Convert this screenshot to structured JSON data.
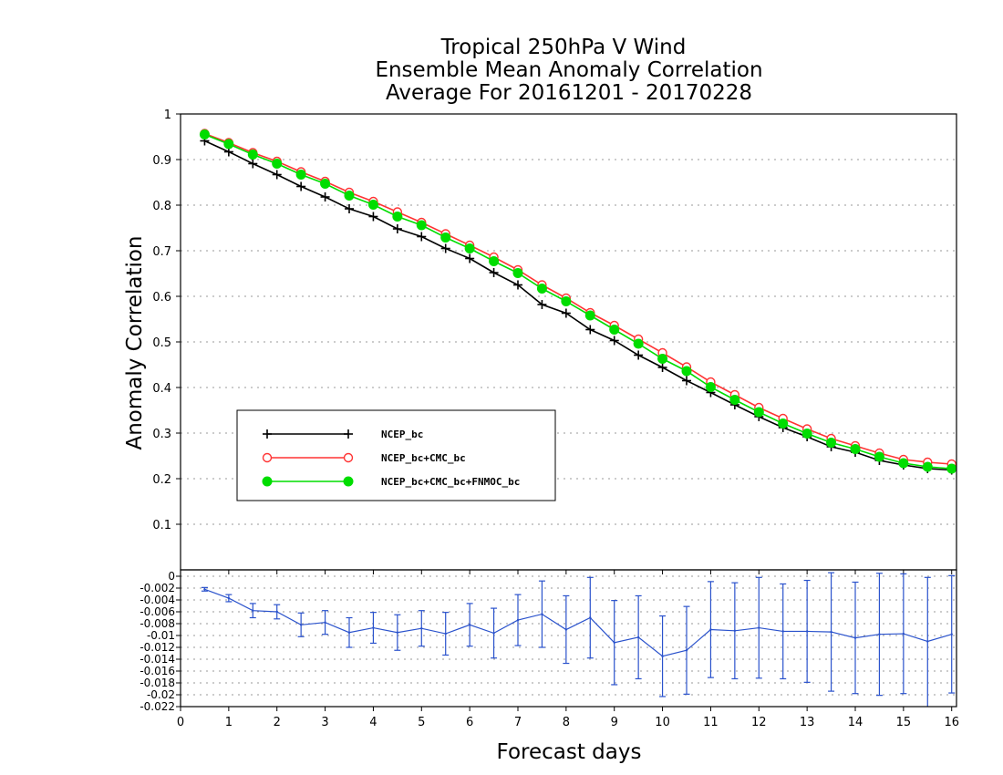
{
  "chart_data": [
    {
      "type": "line",
      "title_lines": [
        "Tropical 250hPa V Wind",
        "Ensemble Mean Anomaly Correlation",
        "Average For 20161201 - 20170228"
      ],
      "ylabel": "Anomaly Correlation",
      "xlim": [
        0,
        16.1
      ],
      "ylim": [
        0,
        1
      ],
      "yticks": [
        "0.1",
        "0.2",
        "0.3",
        "0.4",
        "0.5",
        "0.6",
        "0.7",
        "0.8",
        "0.9",
        "1"
      ],
      "grid": true,
      "legend_position": "center-left",
      "x": [
        0.5,
        1,
        1.5,
        2,
        2.5,
        3,
        3.5,
        4,
        4.5,
        5,
        5.5,
        6,
        6.5,
        7,
        7.5,
        8,
        8.5,
        9,
        9.5,
        10,
        10.5,
        11,
        11.5,
        12,
        12.5,
        13,
        13.5,
        14,
        14.5,
        15,
        15.5,
        16
      ],
      "series": [
        {
          "name": "NCEP_bc",
          "color": "#000000",
          "marker": "plus",
          "values": [
            0.941,
            0.917,
            0.891,
            0.867,
            0.841,
            0.818,
            0.792,
            0.775,
            0.748,
            0.731,
            0.705,
            0.683,
            0.652,
            0.625,
            0.582,
            0.563,
            0.527,
            0.503,
            0.471,
            0.444,
            0.415,
            0.389,
            0.362,
            0.336,
            0.312,
            0.292,
            0.27,
            0.258,
            0.24,
            0.23,
            0.222,
            0.219
          ]
        },
        {
          "name": "NCEP_bc+CMC_bc",
          "color": "#ff3333",
          "marker": "open-circle",
          "values": [
            0.957,
            0.937,
            0.915,
            0.896,
            0.873,
            0.852,
            0.828,
            0.808,
            0.785,
            0.762,
            0.737,
            0.712,
            0.686,
            0.658,
            0.625,
            0.596,
            0.564,
            0.536,
            0.506,
            0.476,
            0.445,
            0.412,
            0.384,
            0.356,
            0.332,
            0.309,
            0.288,
            0.272,
            0.256,
            0.242,
            0.236,
            0.232
          ]
        },
        {
          "name": "NCEP_bc+CMC_bc+FNMOC_bc",
          "color": "#00dd00",
          "marker": "filled-circle",
          "values": [
            0.955,
            0.934,
            0.911,
            0.891,
            0.867,
            0.847,
            0.821,
            0.801,
            0.775,
            0.756,
            0.729,
            0.705,
            0.677,
            0.651,
            0.617,
            0.589,
            0.558,
            0.527,
            0.496,
            0.463,
            0.436,
            0.401,
            0.373,
            0.346,
            0.321,
            0.299,
            0.279,
            0.265,
            0.248,
            0.234,
            0.226,
            0.222
          ]
        }
      ]
    },
    {
      "type": "line",
      "xlabel": "Forecast days",
      "xlim": [
        0,
        16.1
      ],
      "ylim": [
        -0.022,
        0
      ],
      "xticks": [
        "0",
        "1",
        "2",
        "3",
        "4",
        "5",
        "6",
        "7",
        "8",
        "9",
        "10",
        "11",
        "12",
        "13",
        "14",
        "15",
        "16"
      ],
      "yticks": [
        "-0.022",
        "-0.02",
        "-0.018",
        "-0.016",
        "-0.014",
        "-0.012",
        "-0.01",
        "-0.008",
        "-0.006",
        "-0.004",
        "-0.002",
        "0"
      ],
      "grid": true,
      "color": "#2a52cc",
      "x": [
        0.5,
        1,
        1.5,
        2,
        2.5,
        3,
        3.5,
        4,
        4.5,
        5,
        5.5,
        6,
        6.5,
        7,
        7.5,
        8,
        8.5,
        9,
        9.5,
        10,
        10.5,
        11,
        11.5,
        12,
        12.5,
        13,
        13.5,
        14,
        14.5,
        15,
        15.5,
        16
      ],
      "values": [
        -0.0022,
        -0.0037,
        -0.0058,
        -0.006,
        -0.0082,
        -0.0078,
        -0.0095,
        -0.0087,
        -0.0095,
        -0.0088,
        -0.0097,
        -0.0082,
        -0.0096,
        -0.0074,
        -0.0064,
        -0.009,
        -0.007,
        -0.0112,
        -0.0103,
        -0.0135,
        -0.0125,
        -0.009,
        -0.0092,
        -0.0087,
        -0.0093,
        -0.0093,
        -0.0094,
        -0.0104,
        -0.0098,
        -0.0097,
        -0.011,
        -0.0098
      ],
      "error_low": [
        -0.0025,
        -0.0043,
        -0.007,
        -0.0072,
        -0.0102,
        -0.0098,
        -0.012,
        -0.0113,
        -0.0125,
        -0.0118,
        -0.0133,
        -0.0118,
        -0.0138,
        -0.0117,
        -0.012,
        -0.0147,
        -0.0138,
        -0.0183,
        -0.0173,
        -0.0203,
        -0.0199,
        -0.0171,
        -0.0173,
        -0.0172,
        -0.0173,
        -0.0179,
        -0.0194,
        -0.0198,
        -0.0201,
        -0.0198,
        -0.0222,
        -0.0197
      ],
      "error_high": [
        -0.0019,
        -0.0031,
        -0.0046,
        -0.0048,
        -0.0062,
        -0.0058,
        -0.007,
        -0.0061,
        -0.0065,
        -0.0058,
        -0.0061,
        -0.0046,
        -0.0054,
        -0.0031,
        -0.0008,
        -0.0033,
        -0.0002,
        -0.0041,
        -0.0033,
        -0.0067,
        -0.0051,
        -0.0009,
        -0.0011,
        -0.0002,
        -0.0013,
        -0.0007,
        0.0006,
        -0.001,
        0.0005,
        0.0004,
        -0.0002,
        0.0001
      ]
    }
  ]
}
